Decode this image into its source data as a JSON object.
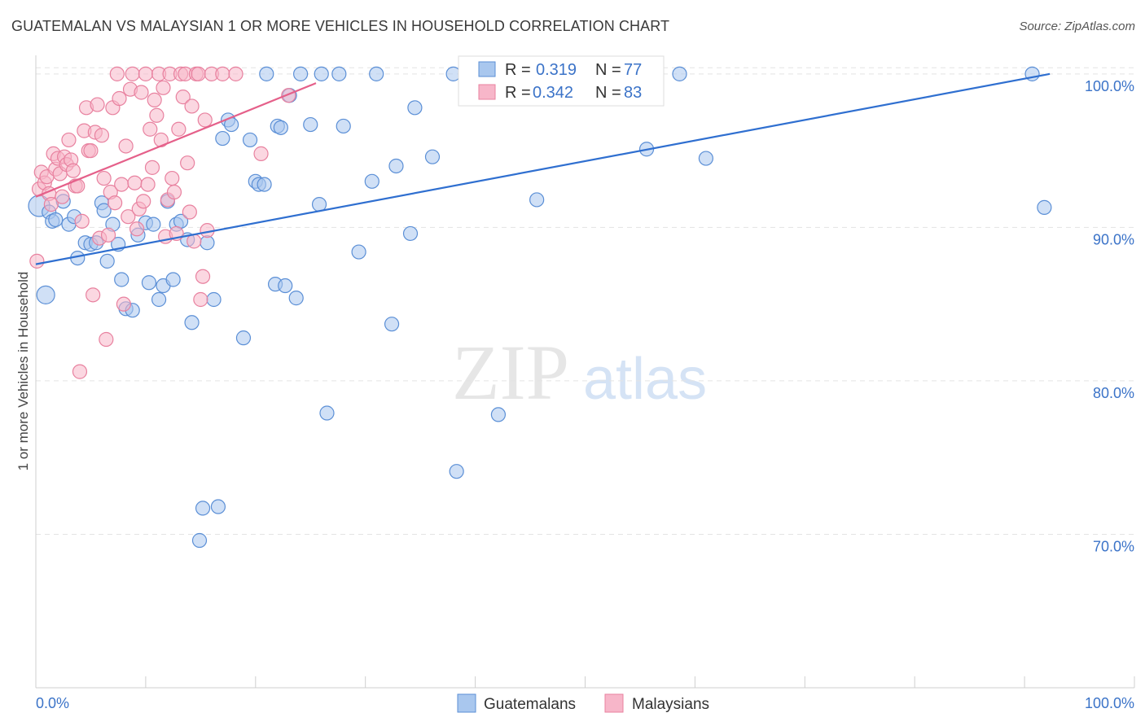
{
  "title": "GUATEMALAN VS MALAYSIAN 1 OR MORE VEHICLES IN HOUSEHOLD CORRELATION CHART",
  "source": "Source: ZipAtlas.com",
  "watermark": {
    "zip": "ZIP",
    "atlas": "atlas"
  },
  "colors": {
    "blue_fill": "#a9c7ee",
    "blue_stroke": "#5b8fd6",
    "blue_line": "#2f6fd0",
    "pink_fill": "#f7b6c9",
    "pink_stroke": "#e8819f",
    "pink_line": "#e5608a",
    "axis_label": "#3b73c8",
    "grid": "#e3e3e3"
  },
  "legend": {
    "r_label": "R =",
    "n_label": "N =",
    "rows": [
      {
        "r": "0.319",
        "n": "77"
      },
      {
        "r": "0.342",
        "n": "83"
      }
    ]
  },
  "chart_data": {
    "type": "scatter",
    "title": "GUATEMALAN VS MALAYSIAN 1 OR MORE VEHICLES IN HOUSEHOLD CORRELATION CHART",
    "xlabel": "",
    "ylabel": "1 or more Vehicles in Household",
    "xlim": [
      0,
      100
    ],
    "ylim": [
      60,
      101
    ],
    "x_tick_labels": [
      "0.0%",
      "100.0%"
    ],
    "y_ticks": [
      70,
      80,
      90,
      100
    ],
    "y_tick_labels": [
      "70.0%",
      "80.0%",
      "90.0%",
      "100.0%"
    ],
    "grid": true,
    "legend_placement": "top-center",
    "bottom_legend": [
      "Guatemalans",
      "Malaysians"
    ],
    "series": [
      {
        "name": "Guatemalans",
        "r": 0.319,
        "n": 77,
        "trend": [
          [
            0,
            87.6
          ],
          [
            92.3,
            100.0
          ]
        ],
        "points": [
          [
            0.3,
            91.4
          ],
          [
            0.9,
            85.6
          ],
          [
            1.2,
            91.0
          ],
          [
            1.5,
            90.4
          ],
          [
            1.8,
            90.5
          ],
          [
            2.5,
            91.7
          ],
          [
            3.0,
            90.2
          ],
          [
            3.5,
            90.7
          ],
          [
            3.8,
            88.0
          ],
          [
            4.5,
            89.0
          ],
          [
            5.0,
            88.9
          ],
          [
            5.5,
            89.0
          ],
          [
            6.0,
            91.6
          ],
          [
            6.2,
            91.1
          ],
          [
            6.5,
            87.8
          ],
          [
            7.0,
            90.2
          ],
          [
            7.5,
            88.9
          ],
          [
            7.8,
            86.6
          ],
          [
            8.2,
            84.7
          ],
          [
            8.8,
            84.6
          ],
          [
            9.3,
            89.5
          ],
          [
            10.0,
            90.3
          ],
          [
            10.3,
            86.4
          ],
          [
            10.7,
            90.2
          ],
          [
            11.2,
            85.3
          ],
          [
            11.6,
            86.2
          ],
          [
            12.0,
            91.7
          ],
          [
            12.5,
            86.6
          ],
          [
            12.8,
            90.2
          ],
          [
            13.2,
            90.4
          ],
          [
            13.8,
            89.2
          ],
          [
            14.2,
            83.8
          ],
          [
            14.9,
            69.6
          ],
          [
            15.2,
            71.7
          ],
          [
            15.6,
            89.0
          ],
          [
            16.2,
            85.3
          ],
          [
            16.6,
            71.8
          ],
          [
            17.0,
            95.8
          ],
          [
            17.5,
            97.0
          ],
          [
            17.8,
            96.7
          ],
          [
            18.9,
            82.8
          ],
          [
            19.5,
            95.7
          ],
          [
            20.0,
            93.0
          ],
          [
            20.3,
            92.8
          ],
          [
            20.8,
            92.8
          ],
          [
            21.0,
            100.0
          ],
          [
            21.8,
            86.3
          ],
          [
            22.0,
            96.6
          ],
          [
            22.3,
            96.5
          ],
          [
            22.7,
            86.2
          ],
          [
            23.1,
            98.6
          ],
          [
            23.7,
            85.4
          ],
          [
            24.1,
            100.0
          ],
          [
            25.0,
            96.7
          ],
          [
            25.8,
            91.5
          ],
          [
            26.0,
            100.0
          ],
          [
            26.5,
            77.9
          ],
          [
            27.6,
            100.0
          ],
          [
            28.0,
            96.6
          ],
          [
            29.4,
            88.4
          ],
          [
            30.6,
            93.0
          ],
          [
            31.0,
            100.0
          ],
          [
            32.4,
            83.7
          ],
          [
            32.8,
            94.0
          ],
          [
            34.1,
            89.6
          ],
          [
            34.5,
            97.8
          ],
          [
            36.1,
            94.6
          ],
          [
            38.0,
            100.0
          ],
          [
            38.3,
            74.1
          ],
          [
            42.1,
            77.8
          ],
          [
            45.6,
            91.8
          ],
          [
            52.5,
            100.0
          ],
          [
            55.6,
            95.1
          ],
          [
            58.6,
            100.0
          ],
          [
            61.0,
            94.5
          ],
          [
            90.7,
            100.0
          ],
          [
            91.8,
            91.3
          ]
        ]
      },
      {
        "name": "Malaysians",
        "r": 0.342,
        "n": 83,
        "trend": [
          [
            0,
            92.0
          ],
          [
            25.5,
            99.4
          ]
        ],
        "points": [
          [
            0.1,
            87.8
          ],
          [
            0.3,
            92.5
          ],
          [
            0.5,
            93.6
          ],
          [
            0.8,
            92.9
          ],
          [
            1.0,
            93.3
          ],
          [
            1.2,
            92.2
          ],
          [
            1.4,
            91.5
          ],
          [
            1.6,
            94.8
          ],
          [
            1.8,
            93.8
          ],
          [
            2.0,
            94.5
          ],
          [
            2.2,
            93.5
          ],
          [
            2.4,
            92.0
          ],
          [
            2.6,
            94.6
          ],
          [
            2.8,
            94.1
          ],
          [
            3.0,
            95.7
          ],
          [
            3.2,
            94.4
          ],
          [
            3.4,
            93.7
          ],
          [
            3.6,
            92.7
          ],
          [
            3.8,
            92.7
          ],
          [
            4.0,
            80.6
          ],
          [
            4.2,
            90.4
          ],
          [
            4.4,
            96.3
          ],
          [
            4.6,
            97.8
          ],
          [
            4.8,
            95.0
          ],
          [
            5.0,
            95.0
          ],
          [
            5.2,
            85.6
          ],
          [
            5.4,
            96.2
          ],
          [
            5.6,
            98.0
          ],
          [
            5.8,
            89.3
          ],
          [
            6.0,
            96.0
          ],
          [
            6.2,
            93.2
          ],
          [
            6.4,
            82.7
          ],
          [
            6.6,
            89.5
          ],
          [
            6.8,
            92.3
          ],
          [
            7.0,
            97.8
          ],
          [
            7.2,
            91.6
          ],
          [
            7.4,
            100.0
          ],
          [
            7.6,
            98.4
          ],
          [
            7.8,
            92.8
          ],
          [
            8.0,
            85.0
          ],
          [
            8.2,
            95.3
          ],
          [
            8.4,
            90.7
          ],
          [
            8.6,
            99.0
          ],
          [
            8.8,
            100.0
          ],
          [
            9.0,
            92.9
          ],
          [
            9.2,
            89.9
          ],
          [
            9.4,
            91.2
          ],
          [
            9.6,
            98.8
          ],
          [
            9.8,
            91.7
          ],
          [
            10.0,
            100.0
          ],
          [
            10.2,
            92.8
          ],
          [
            10.4,
            96.4
          ],
          [
            10.6,
            93.9
          ],
          [
            10.8,
            98.3
          ],
          [
            11.0,
            97.3
          ],
          [
            11.2,
            100.0
          ],
          [
            11.4,
            95.7
          ],
          [
            11.6,
            99.1
          ],
          [
            11.8,
            89.4
          ],
          [
            12.0,
            91.8
          ],
          [
            12.2,
            100.0
          ],
          [
            12.4,
            93.2
          ],
          [
            12.6,
            92.3
          ],
          [
            12.8,
            89.6
          ],
          [
            13.0,
            96.4
          ],
          [
            13.2,
            100.0
          ],
          [
            13.4,
            98.5
          ],
          [
            13.6,
            100.0
          ],
          [
            13.8,
            94.2
          ],
          [
            14.0,
            91.0
          ],
          [
            14.2,
            97.9
          ],
          [
            14.4,
            89.1
          ],
          [
            14.6,
            100.0
          ],
          [
            14.8,
            100.0
          ],
          [
            15.0,
            85.3
          ],
          [
            15.2,
            86.8
          ],
          [
            15.4,
            97.0
          ],
          [
            15.6,
            89.8
          ],
          [
            16.0,
            100.0
          ],
          [
            17.0,
            100.0
          ],
          [
            18.2,
            100.0
          ],
          [
            20.5,
            94.8
          ],
          [
            23.0,
            98.6
          ]
        ]
      }
    ]
  }
}
